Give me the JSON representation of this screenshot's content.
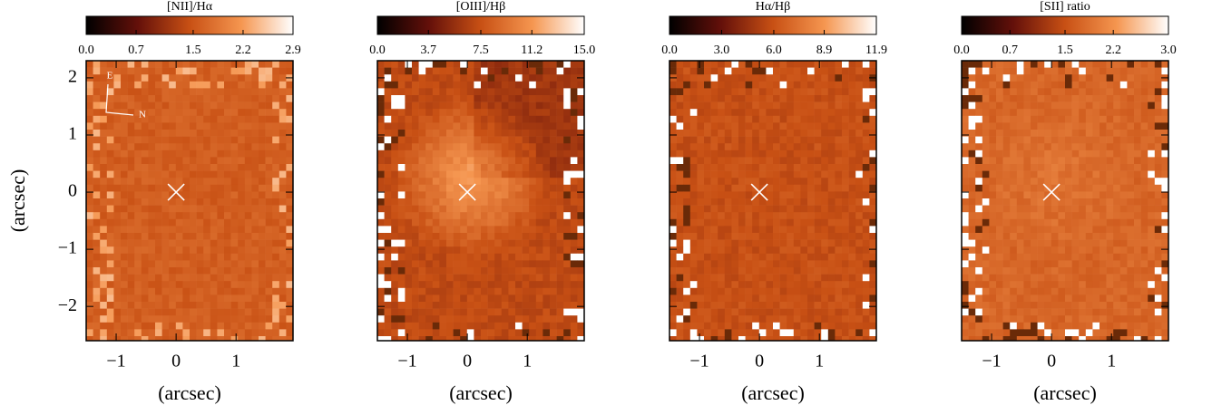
{
  "chart_data": [
    {
      "type": "heatmap",
      "title": "[NII]/Hα",
      "clim": [
        0,
        2.9
      ],
      "cticks": [
        {
          "value": 0,
          "label": "0.0"
        },
        0.7,
        1.5,
        2.2,
        2.9
      ],
      "xlabel": "(arcsec)",
      "ylabel": "(arcsec)",
      "xlim": [
        -1.5,
        1.95
      ],
      "ylim": [
        -2.6,
        2.3
      ],
      "xticks": [
        {
          "value": -1,
          "label": "−1"
        },
        0,
        1
      ],
      "yticks": [
        {
          "value": -2,
          "label": "−2"
        },
        {
          "value": -1,
          "label": "−1"
        },
        0,
        1,
        2
      ],
      "marker": {
        "x": 0,
        "y": 0
      },
      "annotations": [
        "E",
        "N"
      ]
    },
    {
      "type": "heatmap",
      "title": "[OIII]/Hβ",
      "clim": [
        0,
        15
      ],
      "cticks": [
        {
          "value": 0,
          "label": "0.0"
        },
        3.7,
        7.5,
        11.2,
        {
          "value": 15,
          "label": "15.0"
        }
      ],
      "xlabel": "(arcsec)",
      "xlim": [
        -1.5,
        1.95
      ],
      "ylim": [
        -2.6,
        2.3
      ],
      "xticks": [
        {
          "value": -1,
          "label": "−1"
        },
        0,
        1
      ],
      "yticks": [
        -2,
        -1,
        0,
        1,
        2
      ],
      "marker": {
        "x": 0,
        "y": 0
      }
    },
    {
      "type": "heatmap",
      "title": "Hα/Hβ",
      "clim": [
        0,
        11.9
      ],
      "cticks": [
        {
          "value": 0,
          "label": "0.0"
        },
        {
          "value": 3,
          "label": "3.0"
        },
        {
          "value": 6,
          "label": "6.0"
        },
        8.9,
        11.9
      ],
      "xlabel": "(arcsec)",
      "xlim": [
        -1.5,
        1.95
      ],
      "ylim": [
        -2.6,
        2.3
      ],
      "xticks": [
        {
          "value": -1,
          "label": "−1"
        },
        0,
        1
      ],
      "yticks": [
        -2,
        -1,
        0,
        1,
        2
      ],
      "marker": {
        "x": 0,
        "y": 0
      }
    },
    {
      "type": "heatmap",
      "title": "[SII] ratio",
      "clim": [
        0,
        3
      ],
      "cticks": [
        {
          "value": 0,
          "label": "0.0"
        },
        0.7,
        1.5,
        2.2,
        {
          "value": 3,
          "label": "3.0"
        }
      ],
      "xlabel": "(arcsec)",
      "xlim": [
        -1.5,
        1.95
      ],
      "ylim": [
        -2.6,
        2.3
      ],
      "xticks": [
        {
          "value": -1,
          "label": "−1"
        },
        0,
        1
      ],
      "yticks": [
        -2,
        -1,
        0,
        1,
        2
      ],
      "marker": {
        "x": 0,
        "y": 0
      }
    }
  ]
}
